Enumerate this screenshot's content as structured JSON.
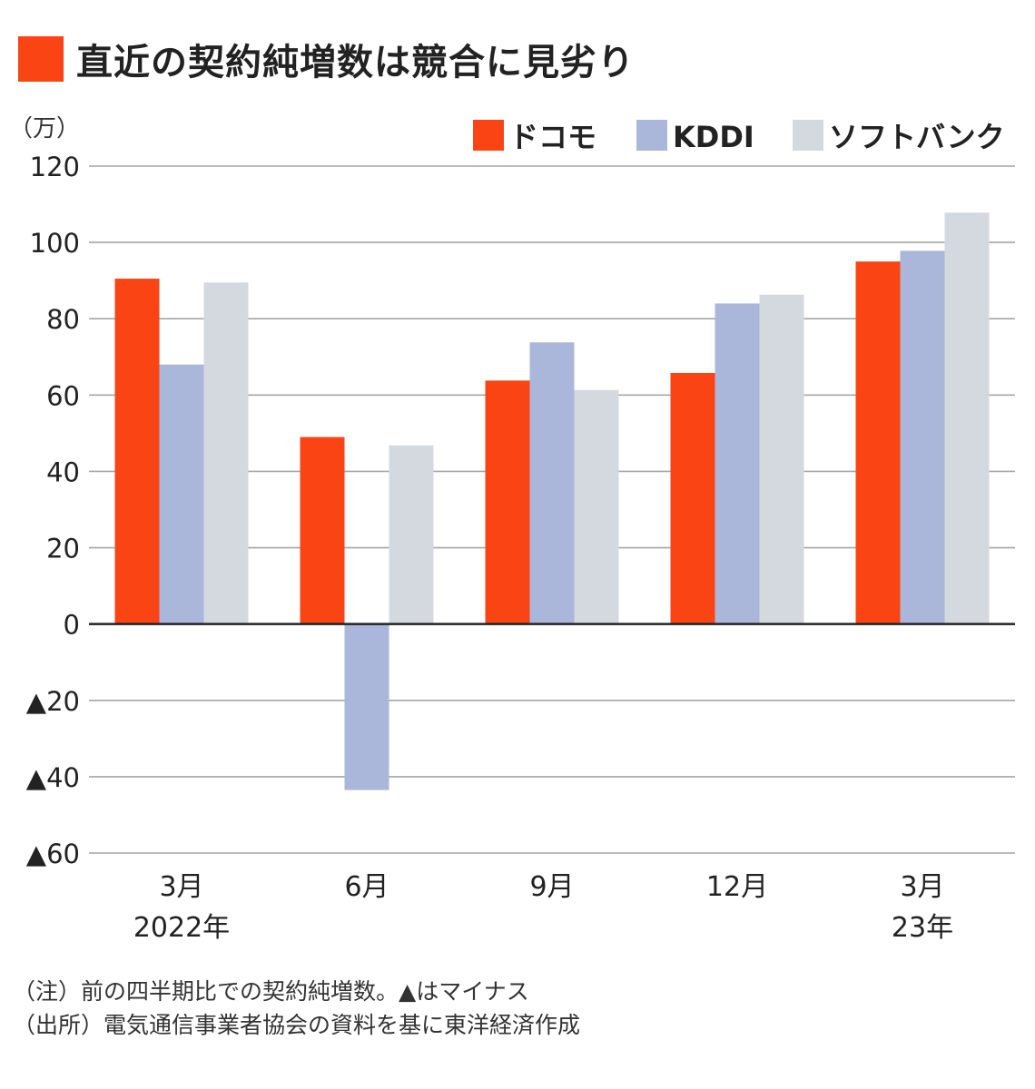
{
  "title": "直近の契約純増数は競合に見劣り",
  "colors": {
    "accent": "#fb4414",
    "docomo": "#fb4414",
    "kddi": "#aab7db",
    "softbank": "#d4d9e0",
    "grid": "#a6a6a6",
    "axis": "#222222"
  },
  "chart_data": {
    "type": "bar",
    "unit_label": "（万）",
    "categories": [
      [
        "3月",
        "2022年"
      ],
      [
        "6月"
      ],
      [
        "9月"
      ],
      [
        "12月"
      ],
      [
        "3月",
        "23年"
      ]
    ],
    "series": [
      {
        "name": "ドコモ",
        "values": [
          90.5,
          49,
          63.8,
          65.8,
          95
        ]
      },
      {
        "name": "KDDI",
        "values": [
          68,
          -43.5,
          73.8,
          84,
          97.8
        ]
      },
      {
        "name": "ソフトバンク",
        "values": [
          89.5,
          46.8,
          61.3,
          86.3,
          107.8
        ]
      }
    ],
    "ylim": [
      -60,
      120
    ],
    "yticks": [
      120,
      100,
      80,
      60,
      40,
      20,
      0,
      -20,
      -40,
      -60
    ],
    "ytick_labels": [
      "120",
      "100",
      "80",
      "60",
      "40",
      "20",
      "0",
      "▲20",
      "▲40",
      "▲60"
    ],
    "grid": true,
    "legend_position": "top-right"
  },
  "notes": [
    "（注）前の四半期比での契約純増数。▲はマイナス",
    "（出所）電気通信事業者協会の資料を基に東洋経済作成"
  ]
}
